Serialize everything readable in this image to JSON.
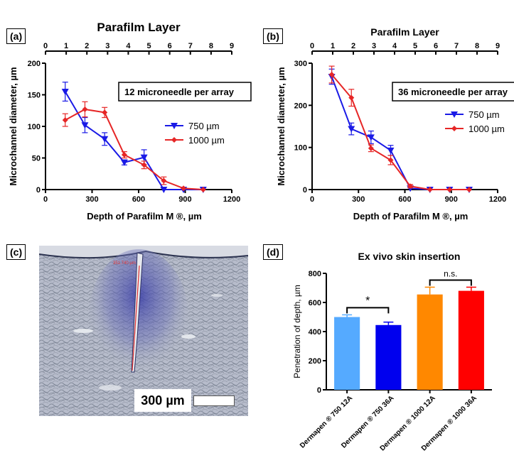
{
  "panels": {
    "a": {
      "label": "(a)"
    },
    "b": {
      "label": "(b)"
    },
    "c": {
      "label": "(c)",
      "scale_text": "300 µm",
      "trace_text": "351.740 µm"
    },
    "d": {
      "label": "(d)"
    }
  },
  "chart_data": [
    {
      "id": "a",
      "type": "line",
      "title": "Parafilm Layer",
      "xlabel": "Depth of Parafilm M ®, µm",
      "ylabel": "Microchannel diameter, µm",
      "xlim": [
        0,
        1200
      ],
      "ylim": [
        0,
        200
      ],
      "x_ticks": [
        "0",
        "300",
        "600",
        "900",
        "1200"
      ],
      "y_ticks": [
        "0",
        "50",
        "100",
        "150",
        "200"
      ],
      "top_axis_ticks": [
        "0",
        "1",
        "2",
        "3",
        "4",
        "5",
        "6",
        "7",
        "8",
        "9"
      ],
      "annotation": "12 microneedle per array",
      "x": [
        127,
        254,
        381,
        508,
        635,
        762,
        889,
        1016
      ],
      "series": [
        {
          "name": "750 µm",
          "color": "#1a1ae6",
          "marker": "triangle-down",
          "values": [
            155,
            102,
            80,
            43,
            51,
            0,
            0,
            0
          ],
          "errors": [
            15,
            12,
            10,
            4,
            12,
            0,
            0,
            0
          ]
        },
        {
          "name": "1000 µm",
          "color": "#e62626",
          "marker": "diamond",
          "values": [
            110,
            127,
            122,
            55,
            39,
            14,
            2,
            0
          ],
          "errors": [
            10,
            12,
            8,
            5,
            6,
            6,
            0,
            0
          ]
        }
      ]
    },
    {
      "id": "b",
      "type": "line",
      "title": "Parafilm Layer",
      "xlabel": "Depth of Parafilm M ®, µm",
      "ylabel": "Microchannel diameter, µm",
      "xlim": [
        0,
        1200
      ],
      "ylim": [
        0,
        300
      ],
      "x_ticks": [
        "0",
        "300",
        "600",
        "900",
        "1200"
      ],
      "y_ticks": [
        "0",
        "100",
        "200",
        "300"
      ],
      "top_axis_ticks": [
        "0",
        "1",
        "2",
        "3",
        "4",
        "5",
        "6",
        "7",
        "8",
        "9"
      ],
      "annotation": "36 microneedle per array",
      "x": [
        127,
        254,
        381,
        508,
        635,
        762,
        889,
        1016
      ],
      "series": [
        {
          "name": "750 µm",
          "color": "#1a1ae6",
          "marker": "triangle-down",
          "values": [
            268,
            144,
            124,
            93,
            3,
            0,
            0,
            0
          ],
          "errors": [
            18,
            14,
            15,
            12,
            0,
            0,
            0,
            0
          ]
        },
        {
          "name": "1000 µm",
          "color": "#e62626",
          "marker": "diamond",
          "values": [
            273,
            218,
            98,
            70,
            8,
            0,
            0,
            0
          ],
          "errors": [
            20,
            20,
            8,
            11,
            4,
            0,
            0,
            0
          ]
        }
      ]
    },
    {
      "id": "d",
      "type": "bar",
      "title": "Ex vivo skin insertion",
      "xlabel": "",
      "ylabel": "Penetration of depth, µm",
      "ylim": [
        0,
        800
      ],
      "y_ticks": [
        "0",
        "200",
        "400",
        "600",
        "800"
      ],
      "categories": [
        "Dermapen ® 750 12A",
        "Dermapen ® 750 36A",
        "Dermapen ® 1000 12A",
        "Dermapen ® 1000 36A"
      ],
      "values": [
        500,
        445,
        655,
        680
      ],
      "errors": [
        15,
        20,
        50,
        25
      ],
      "colors": [
        "#55aaff",
        "#0000ee",
        "#ff8800",
        "#ff0000"
      ],
      "significance": [
        {
          "between": [
            0,
            1
          ],
          "label": "*"
        },
        {
          "between": [
            2,
            3
          ],
          "label": "n.s."
        }
      ]
    }
  ]
}
